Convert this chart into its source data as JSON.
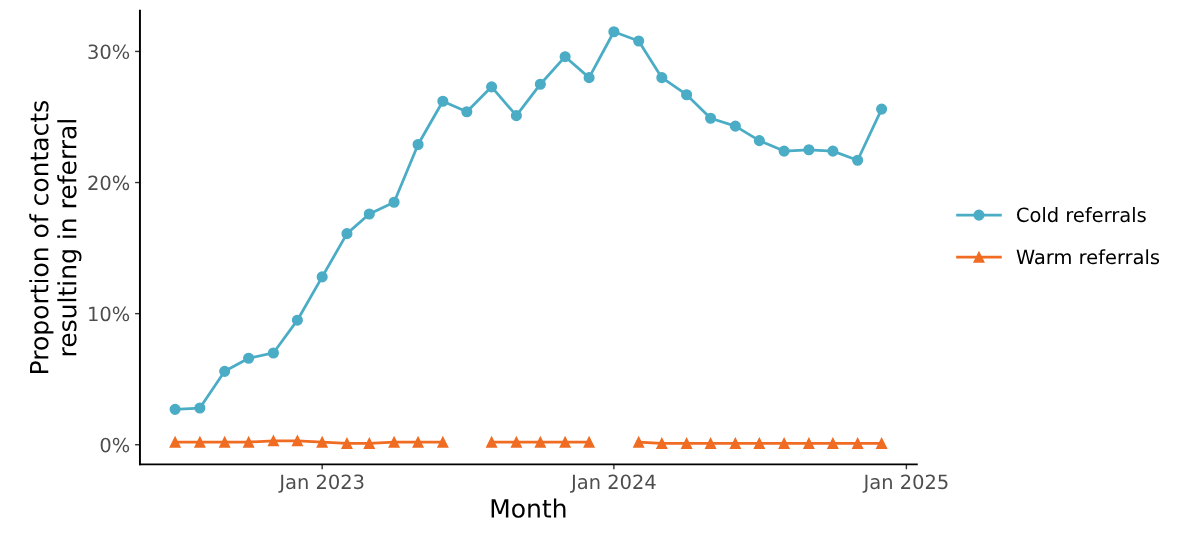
{
  "chart_data": {
    "type": "line",
    "xlabel": "Month",
    "ylabel": "Proportion of contacts\nresulting in referral",
    "x": [
      "2022-07",
      "2022-08",
      "2022-09",
      "2022-10",
      "2022-11",
      "2022-12",
      "2023-01",
      "2023-02",
      "2023-03",
      "2023-04",
      "2023-05",
      "2023-06",
      "2023-07",
      "2023-08",
      "2023-09",
      "2023-10",
      "2023-11",
      "2023-12",
      "2024-01",
      "2024-02",
      "2024-03",
      "2024-04",
      "2024-05",
      "2024-06",
      "2024-07",
      "2024-08",
      "2024-09",
      "2024-10",
      "2024-11",
      "2024-12"
    ],
    "series": [
      {
        "name": "Cold referrals",
        "color": "#4bacc6",
        "marker": "circle",
        "values": [
          2.7,
          2.8,
          5.6,
          6.6,
          7.0,
          9.5,
          12.8,
          16.1,
          17.6,
          18.5,
          22.9,
          26.2,
          25.4,
          27.3,
          25.1,
          27.5,
          29.6,
          28.0,
          31.5,
          30.8,
          28.0,
          26.7,
          24.9,
          24.3,
          23.2,
          22.4,
          22.5,
          22.4,
          21.7,
          25.6
        ]
      },
      {
        "name": "Warm referrals",
        "color": "#f06c23",
        "marker": "triangle",
        "values": [
          0.2,
          0.2,
          0.2,
          0.2,
          0.3,
          0.3,
          0.2,
          0.1,
          0.1,
          0.2,
          0.2,
          0.2,
          null,
          0.2,
          0.2,
          0.2,
          0.2,
          0.2,
          null,
          0.2,
          0.1,
          0.1,
          0.1,
          0.1,
          0.1,
          0.1,
          0.1,
          0.1,
          0.1,
          0.1
        ]
      }
    ],
    "xlim": [
      "2022-05-18",
      "2025-01-14"
    ],
    "xticks": [
      {
        "value": "2023-01-01",
        "label": "Jan 2023"
      },
      {
        "value": "2024-01-01",
        "label": "Jan 2024"
      },
      {
        "value": "2025-01-01",
        "label": "Jan 2025"
      }
    ],
    "ylim": [
      -1.5,
      33.1
    ],
    "yticks": [
      {
        "value": 0,
        "label": "0%"
      },
      {
        "value": 10,
        "label": "10%"
      },
      {
        "value": 20,
        "label": "20%"
      },
      {
        "value": 30,
        "label": "30%"
      }
    ],
    "grid": false,
    "legend": "right",
    "line_style": "solid"
  }
}
